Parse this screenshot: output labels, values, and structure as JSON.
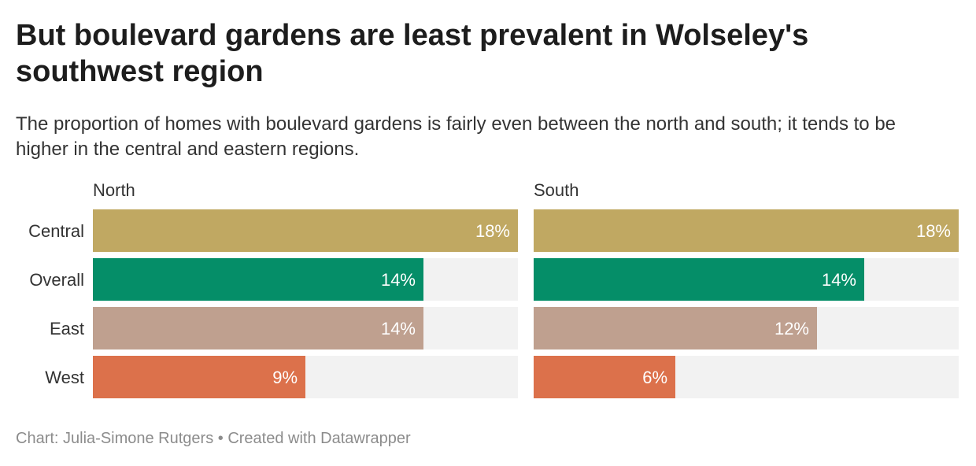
{
  "header": {
    "title": "But boulevard gardens are least prevalent in Wolseley's southwest region",
    "subtitle": "The proportion of homes with boulevard gardens is fairly even between the north and south; it tends to be higher in the central and eastern regions."
  },
  "chart_data": {
    "type": "bar",
    "orientation": "horizontal",
    "value_format": "percent",
    "xlim": [
      0,
      18
    ],
    "categories": [
      "Central",
      "Overall",
      "East",
      "West"
    ],
    "category_colors": [
      "#c0a862",
      "#058e68",
      "#bfa08f",
      "#dc714b"
    ],
    "track_color": "#f2f2f2",
    "panels": [
      {
        "name": "North",
        "values": [
          18,
          14,
          14,
          9
        ]
      },
      {
        "name": "South",
        "values": [
          18,
          14,
          12,
          6
        ]
      }
    ]
  },
  "footer": {
    "credit": "Chart: Julia-Simone Rutgers • Created with Datawrapper"
  }
}
